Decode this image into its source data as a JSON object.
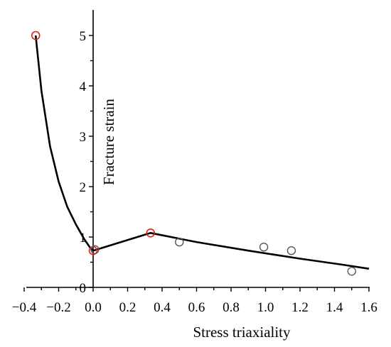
{
  "chart_data": {
    "type": "scatter",
    "title": "",
    "xlabel": "Stress triaxiality",
    "ylabel": "Fracture strain",
    "xlim": [
      -0.333,
      1.6
    ],
    "ylim": [
      0,
      5.5
    ],
    "x_ticks": [
      -0.4,
      -0.2,
      0.0,
      0.2,
      0.4,
      0.6,
      0.8,
      1.0,
      1.2,
      1.4,
      1.6
    ],
    "x_tick_labels": [
      "−0.4",
      "−0.2",
      "0.0",
      "0.2",
      "0.4",
      "0.6",
      "0.8",
      "1.0",
      "1.2",
      "1.4",
      "1.6"
    ],
    "y_ticks": [
      0,
      1,
      2,
      3,
      4,
      5
    ],
    "y_tick_labels": [
      "0",
      "1",
      "2",
      "3",
      "4",
      "5"
    ],
    "grid": false,
    "legend": "none",
    "colors": {
      "calibration": "#e0201b",
      "experiment": "#555555",
      "curve": "#000000"
    },
    "series": [
      {
        "kind": "markers",
        "style": "calibration",
        "points": [
          {
            "x": -0.333,
            "y": 5.0
          },
          {
            "x": 0.0,
            "y": 0.73
          },
          {
            "x": 0.333,
            "y": 1.08
          }
        ]
      },
      {
        "kind": "markers",
        "style": "experiment",
        "points": [
          {
            "x": 0.01,
            "y": 0.75
          },
          {
            "x": 0.5,
            "y": 0.9
          },
          {
            "x": 0.99,
            "y": 0.8
          },
          {
            "x": 1.15,
            "y": 0.73
          },
          {
            "x": 1.5,
            "y": 0.32
          }
        ]
      },
      {
        "kind": "line",
        "style": "curve",
        "points": [
          {
            "x": -0.333,
            "y": 5.0
          },
          {
            "x": -0.3,
            "y": 3.9
          },
          {
            "x": -0.25,
            "y": 2.8
          },
          {
            "x": -0.2,
            "y": 2.1
          },
          {
            "x": -0.15,
            "y": 1.6
          },
          {
            "x": -0.1,
            "y": 1.25
          },
          {
            "x": -0.05,
            "y": 0.95
          },
          {
            "x": -0.02,
            "y": 0.8
          },
          {
            "x": 0.0,
            "y": 0.73
          },
          {
            "x": 0.333,
            "y": 1.08
          },
          {
            "x": 0.6,
            "y": 0.9
          },
          {
            "x": 0.9,
            "y": 0.73
          },
          {
            "x": 1.2,
            "y": 0.57
          },
          {
            "x": 1.45,
            "y": 0.45
          },
          {
            "x": 1.6,
            "y": 0.37
          }
        ]
      }
    ]
  }
}
